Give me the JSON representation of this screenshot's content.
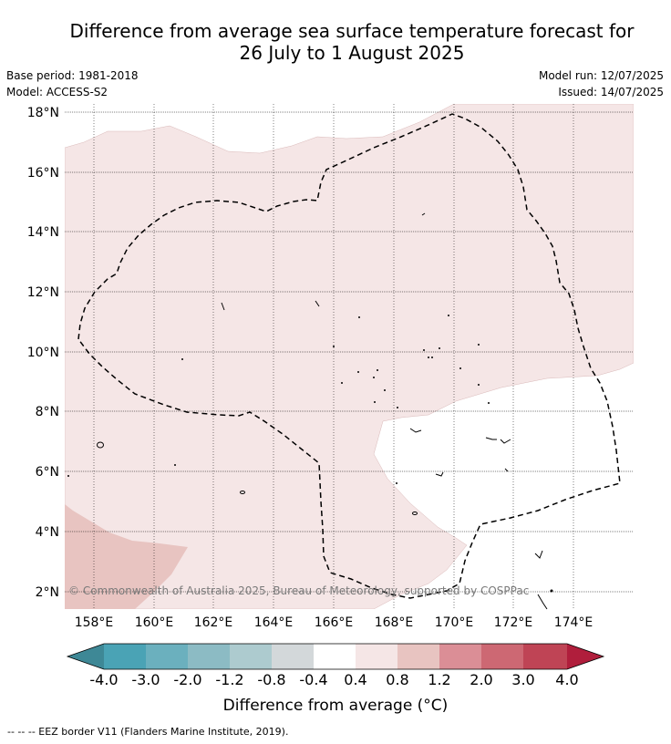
{
  "title_line1": "Difference from average sea surface temperature forecast for",
  "title_line2": "26 July to 1 August 2025",
  "base_period": "Base period: 1981-2018",
  "model": "Model: ACCESS-S2",
  "model_run": "Model run: 12/07/2025",
  "issued": "Issued: 14/07/2025",
  "copyright": "© Commonwealth of Australia 2025, Bureau of Meteorology, supported by COSPPac",
  "colorbar_label": "Difference from average (°C)",
  "footer": "-- -- -- EEZ border V11 (Flanders Marine Institute, 2019).",
  "map_data": {
    "lon_ticks": [
      "158°E",
      "160°E",
      "162°E",
      "164°E",
      "166°E",
      "168°E",
      "170°E",
      "172°E",
      "174°E"
    ],
    "lat_ticks": [
      "18°N",
      "16°N",
      "14°N",
      "12°N",
      "10°N",
      "8°N",
      "6°N",
      "4°N",
      "2°N"
    ],
    "lon_range": [
      157,
      176
    ],
    "lat_range": [
      1.4,
      18.3
    ],
    "gridlines": true
  },
  "colorbar": {
    "ticks": [
      "-4.0",
      "-3.0",
      "-2.0",
      "-1.2",
      "-0.8",
      "-0.4",
      "0.4",
      "0.8",
      "1.2",
      "2.0",
      "3.0",
      "4.0"
    ],
    "colors": [
      "#4aa3b5",
      "#6bb0be",
      "#8cbbc4",
      "#adcbcf",
      "#d3d8da",
      "#ffffff",
      "#f5e6e6",
      "#e8c4c1",
      "#db8e96",
      "#cd6873",
      "#bf4455"
    ],
    "under_color": "#3e8896",
    "over_color": "#b01e3c"
  },
  "shade_colors": {
    "light_warm": "#f5e6e6",
    "warm": "#e8c4c1",
    "neutral": "#ffffff"
  }
}
